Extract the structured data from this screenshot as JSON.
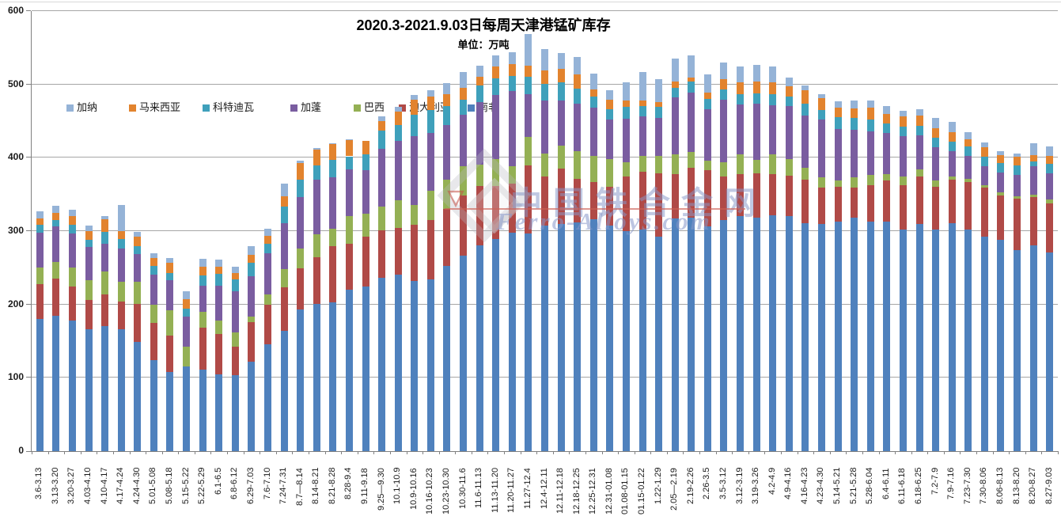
{
  "watermark": {
    "cn": "中国铁合金网",
    "en": "Ferro-Alloys.com",
    "triangle": "▽"
  },
  "chart_data": {
    "type": "bar",
    "stacked": true,
    "title": "2020.3-2021.9.03日每周天津港锰矿库存",
    "subtitle": "单位：万吨",
    "xlabel": "",
    "ylabel": "",
    "ylim": [
      0,
      600
    ],
    "yticks": [
      0,
      100,
      200,
      300,
      400,
      500,
      600
    ],
    "grid": true,
    "legend_position": "top-inside",
    "legend": [
      "加纳",
      "马来西亚",
      "科特迪瓦",
      "加蓬",
      "巴西",
      "澳大利亚",
      "南非"
    ],
    "categories": [
      "3.6-3.13",
      "3.13-3.20",
      "3.20-3.27",
      "4.03-4.10",
      "4.10-4.17",
      "4.17-4.24",
      "4.24-4.30",
      "5.01-5.08",
      "5.08-5.18",
      "5.15-5.22",
      "5.22-5.29",
      "6.1-6.5",
      "6.8-6.12",
      "6.29-7.03",
      "7.6-7.10",
      "7.24-7.31",
      "8.7—8.14",
      "8.14-8.21",
      "8.21-8.28",
      "8.28-9.4",
      "9.11-9.18",
      "9.25—9.30",
      "10.1-10.9",
      "10.9-10.16",
      "10.16-10.23",
      "10.23-10.30",
      "10.30-11.6",
      "11.6-11.13",
      "11.13-11.20",
      "11.20-11.27",
      "11.27-12.4",
      "12.4-12.11",
      "12.11-12.18",
      "12.18-12.25",
      "12.25-12.31",
      "12.31-01.08",
      "01.08-01.15",
      "01.15-01.22",
      "1.22-1.29",
      "2.05—2.19",
      "2.19-2.26",
      "2.26-3.5",
      "3.5-3.12",
      "3.12-3.19",
      "3.19-3.26",
      "4.2-4.9",
      "4.9-4.16",
      "4.16-4.23",
      "4.23-4.30",
      "5.14-5.21",
      "5.21-5.28",
      "5.28-6.04",
      "6.4-6.11",
      "6.11-6.18",
      "6.18-6.25",
      "7.2-7.9",
      "7.9-7.16",
      "7.23-7.30",
      "7.30-8.06",
      "8.06-8.13",
      "8.13-8.20",
      "8.20-8.27",
      "8.27-9.03"
    ],
    "series": [
      {
        "name": "南非",
        "color": "#4f81bd",
        "values": [
          180,
          185,
          178,
          166,
          171,
          166,
          149,
          124,
          108,
          115,
          111,
          105,
          104,
          122,
          146,
          164,
          193,
          201,
          203,
          220,
          225,
          236,
          241,
          232,
          234,
          252,
          267,
          281,
          289,
          298,
          297,
          308,
          310,
          312,
          316,
          308,
          300,
          302,
          293,
          317,
          318,
          306,
          315,
          320,
          318,
          322,
          320,
          311,
          310,
          313,
          318,
          313,
          313,
          302,
          310,
          302,
          311,
          302,
          293,
          288,
          274,
          281,
          271
        ]
      },
      {
        "name": "澳大利亚",
        "color": "#b04a47",
        "values": [
          48,
          50,
          47,
          40,
          43,
          38,
          52,
          51,
          50,
          0,
          57,
          55,
          38,
          54,
          54,
          59,
          56,
          63,
          77,
          63,
          68,
          65,
          63,
          77,
          81,
          78,
          82,
          80,
          72,
          67,
          93,
          67,
          75,
          59,
          51,
          52,
          74,
          79,
          86,
          61,
          68,
          77,
          59,
          58,
          61,
          56,
          56,
          59,
          49,
          47,
          41,
          50,
          56,
          61,
          65,
          58,
          59,
          65,
          66,
          61,
          70,
          65,
          67
        ]
      },
      {
        "name": "巴西",
        "color": "#94b054",
        "values": [
          22,
          23,
          25,
          27,
          31,
          27,
          30,
          25,
          34,
          27,
          22,
          18,
          20,
          7,
          14,
          25,
          27,
          32,
          23,
          38,
          31,
          32,
          38,
          27,
          40,
          40,
          39,
          30,
          37,
          23,
          38,
          31,
          32,
          38,
          36,
          38,
          20,
          22,
          23,
          27,
          22,
          13,
          20,
          27,
          18,
          27,
          22,
          16,
          14,
          9,
          14,
          14,
          9,
          11,
          9,
          9,
          5,
          4,
          4,
          4,
          4,
          4,
          5
        ]
      },
      {
        "name": "加蓬",
        "color": "#7a5da0",
        "values": [
          48,
          48,
          47,
          45,
          38,
          45,
          38,
          41,
          41,
          41,
          36,
          48,
          56,
          56,
          56,
          63,
          70,
          74,
          70,
          63,
          59,
          79,
          81,
          94,
          79,
          75,
          71,
          85,
          88,
          103,
          59,
          72,
          61,
          65,
          65,
          54,
          59,
          54,
          52,
          77,
          81,
          70,
          85,
          68,
          77,
          67,
          72,
          72,
          79,
          70,
          65,
          59,
          56,
          56,
          47,
          45,
          34,
          32,
          25,
          27,
          29,
          38,
          36
        ]
      },
      {
        "name": "科特迪瓦",
        "color": "#3fa0bb",
        "values": [
          11,
          9,
          12,
          10,
          16,
          13,
          11,
          12,
          10,
          11,
          14,
          16,
          16,
          18,
          13,
          22,
          24,
          20,
          24,
          18,
          22,
          25,
          22,
          29,
          31,
          25,
          20,
          23,
          22,
          21,
          23,
          23,
          25,
          20,
          16,
          14,
          16,
          14,
          15,
          13,
          15,
          14,
          14,
          14,
          14,
          15,
          14,
          16,
          13,
          16,
          16,
          16,
          13,
          13,
          13,
          13,
          13,
          13,
          13,
          13,
          13,
          7,
          13
        ]
      },
      {
        "name": "马来西亚",
        "color": "#e2832e",
        "values": [
          8,
          10,
          11,
          12,
          17,
          11,
          12,
          10,
          14,
          13,
          11,
          9,
          9,
          11,
          11,
          14,
          23,
          21,
          22,
          22,
          18,
          13,
          18,
          20,
          18,
          17,
          16,
          11,
          16,
          16,
          16,
          18,
          18,
          20,
          9,
          13,
          9,
          7,
          7,
          9,
          5,
          9,
          14,
          16,
          16,
          16,
          14,
          18,
          16,
          13,
          13,
          16,
          13,
          14,
          14,
          13,
          13,
          9,
          13,
          11,
          11,
          9,
          11
        ]
      },
      {
        "name": "加纳",
        "color": "#95b3d7",
        "values": [
          10,
          10,
          9,
          8,
          5,
          36,
          7,
          7,
          6,
          11,
          11,
          10,
          8,
          12,
          9,
          18,
          3,
          2,
          1,
          1,
          0,
          7,
          6,
          7,
          9,
          15,
          22,
          16,
          16,
          16,
          43,
          29,
          22,
          23,
          22,
          13,
          25,
          39,
          31,
          31,
          31,
          25,
          23,
          22,
          23,
          21,
          11,
          7,
          6,
          9,
          11,
          10,
          10,
          7,
          8,
          14,
          14,
          10,
          7,
          5,
          5,
          16,
          13
        ]
      }
    ]
  }
}
